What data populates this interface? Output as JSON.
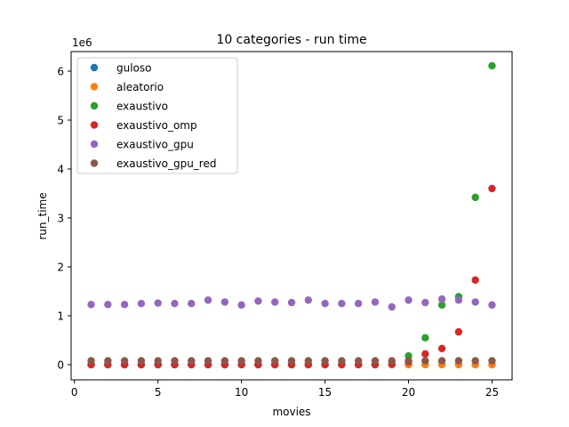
{
  "chart_data": {
    "type": "scatter",
    "title": "10 categories - run time",
    "xlabel": "movies",
    "ylabel": "run_time",
    "y_offset_label": "1e6",
    "xlim": [
      -0.2,
      26.2
    ],
    "ylim": [
      -0.31,
      6.4
    ],
    "y_unit_scale": 1000000,
    "x_ticks": [
      0,
      5,
      10,
      15,
      20,
      25
    ],
    "y_ticks": [
      0,
      1,
      2,
      3,
      4,
      5,
      6
    ],
    "x_tick_labels": [
      "0",
      "5",
      "10",
      "15",
      "20",
      "25"
    ],
    "y_tick_labels": [
      "0",
      "1",
      "2",
      "3",
      "4",
      "5",
      "6"
    ],
    "grid": false,
    "legend_placement": "upper-left",
    "x": [
      1,
      2,
      3,
      4,
      5,
      6,
      7,
      8,
      9,
      10,
      11,
      12,
      13,
      14,
      15,
      16,
      17,
      18,
      19,
      20,
      21,
      22,
      23,
      24,
      25
    ],
    "series": [
      {
        "name": "guloso",
        "color": "#1f77b4",
        "values": [
          0,
          0,
          0,
          0,
          0,
          0,
          0,
          0,
          0,
          0,
          0,
          0,
          0,
          0,
          0,
          0,
          0,
          0,
          0,
          0,
          0,
          0,
          0,
          0,
          0
        ]
      },
      {
        "name": "aleatorio",
        "color": "#ff7f0e",
        "values": [
          0,
          0,
          0,
          0,
          0,
          0,
          0,
          0,
          0,
          0,
          0,
          0,
          0,
          0,
          0,
          0,
          0,
          0,
          0,
          0,
          0,
          0,
          0,
          0,
          0
        ]
      },
      {
        "name": "exaustivo",
        "color": "#2ca02c",
        "values": [
          0,
          0,
          0,
          0,
          0,
          0,
          0,
          0,
          0,
          0,
          0,
          0,
          0,
          0,
          0,
          0,
          0,
          0,
          0.01,
          0.18,
          0.55,
          1.22,
          1.39,
          3.42,
          6.11
        ]
      },
      {
        "name": "exaustivo_omp",
        "color": "#d62728",
        "values": [
          0,
          0,
          0,
          0,
          0,
          0,
          0,
          0,
          0,
          0,
          0,
          0,
          0,
          0,
          0,
          0,
          0,
          0,
          0.01,
          0.06,
          0.22,
          0.33,
          0.67,
          1.73,
          3.6
        ]
      },
      {
        "name": "exaustivo_gpu",
        "color": "#9467bd",
        "values": [
          1.23,
          1.23,
          1.23,
          1.25,
          1.26,
          1.25,
          1.25,
          1.32,
          1.28,
          1.22,
          1.3,
          1.28,
          1.27,
          1.32,
          1.25,
          1.25,
          1.25,
          1.28,
          1.18,
          1.32,
          1.27,
          1.34,
          1.32,
          1.28,
          1.22
        ]
      },
      {
        "name": "exaustivo_gpu_red",
        "color": "#8c564b",
        "values": [
          0.08,
          0.08,
          0.08,
          0.08,
          0.08,
          0.08,
          0.08,
          0.08,
          0.08,
          0.08,
          0.08,
          0.08,
          0.08,
          0.08,
          0.08,
          0.08,
          0.08,
          0.08,
          0.08,
          0.08,
          0.08,
          0.08,
          0.08,
          0.08,
          0.08
        ]
      }
    ]
  }
}
